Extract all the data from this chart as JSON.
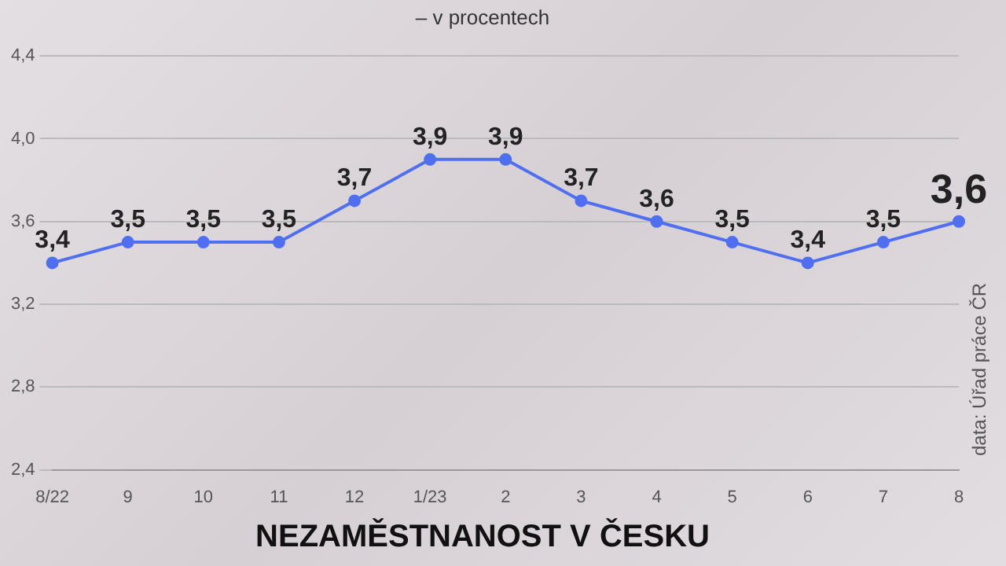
{
  "chart_data": {
    "type": "line",
    "title": "NEZAMĚSTNANOST V ČESKU",
    "subtitle": "– v procentech",
    "annotations": [
      "data: Úřad práce ČR"
    ],
    "categories": [
      "8/22",
      "9",
      "10",
      "11",
      "12",
      "1/23",
      "2",
      "3",
      "4",
      "5",
      "6",
      "7",
      "8"
    ],
    "series": [
      {
        "color": "#4f6ff0",
        "values": [
          3.4,
          3.5,
          3.5,
          3.5,
          3.7,
          3.9,
          3.9,
          3.7,
          3.6,
          3.5,
          3.4,
          3.5,
          3.6
        ],
        "value_labels": [
          "3,4",
          "3,5",
          "3,5",
          "3,5",
          "3,7",
          "3,9",
          "3,9",
          "3,7",
          "3,6",
          "3,5",
          "3,4",
          "3,5",
          "3,6"
        ]
      }
    ],
    "ylim": [
      2.4,
      4.4
    ],
    "yticks": [
      {
        "value": 2.4,
        "label": "2,4"
      },
      {
        "value": 2.8,
        "label": "2,8"
      },
      {
        "value": 3.2,
        "label": "3,2"
      },
      {
        "value": 3.6,
        "label": "3,6"
      },
      {
        "value": 4.0,
        "label": "4,0"
      },
      {
        "value": 4.4,
        "label": "4,4"
      }
    ],
    "grid": "y",
    "legend": false,
    "marker": "circle",
    "line_style": "solid"
  }
}
